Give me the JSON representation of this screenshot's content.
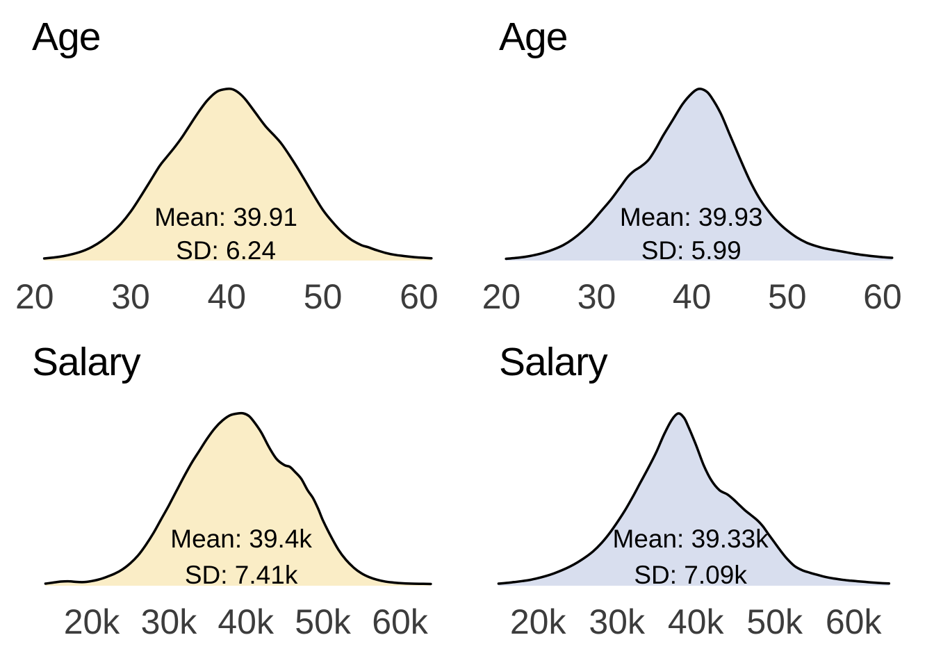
{
  "colors": {
    "background": "#FFFFFF",
    "series_a_fill": "#FAEDC6",
    "series_b_fill": "#D8DEEE",
    "curve_stroke": "#000000",
    "tick_text": "#3C3C3C",
    "title_text": "#000000"
  },
  "chart_data": [
    {
      "type": "area",
      "variant": "kde-density",
      "position": "top-left",
      "title": "Age",
      "fill_color": "#FAEDC6",
      "line_color": "#000000",
      "annotations": {
        "mean": "Mean: 39.91",
        "sd": "SD: 6.24"
      },
      "mean_value": 39.91,
      "sd_value": 6.24,
      "x_domain": [
        16.4,
        65.0
      ],
      "ylim": [
        0,
        1
      ],
      "grid": false,
      "legend": false,
      "x_ticks": {
        "values": [
          20,
          30,
          40,
          50,
          60
        ],
        "labels": [
          "20",
          "30",
          "40",
          "50",
          "60"
        ]
      },
      "curve": [
        [
          21,
          0.012
        ],
        [
          22,
          0.018
        ],
        [
          23,
          0.026
        ],
        [
          24,
          0.038
        ],
        [
          25,
          0.055
        ],
        [
          26,
          0.08
        ],
        [
          27,
          0.115
        ],
        [
          28,
          0.16
        ],
        [
          29,
          0.215
        ],
        [
          30,
          0.285
        ],
        [
          31,
          0.37
        ],
        [
          32,
          0.46
        ],
        [
          33,
          0.55
        ],
        [
          33.7,
          0.6
        ],
        [
          34.5,
          0.655
        ],
        [
          35.3,
          0.715
        ],
        [
          36,
          0.775
        ],
        [
          37,
          0.86
        ],
        [
          38,
          0.935
        ],
        [
          39,
          0.985
        ],
        [
          40,
          1.0
        ],
        [
          40.6,
          0.998
        ],
        [
          41.3,
          0.975
        ],
        [
          42,
          0.935
        ],
        [
          43,
          0.86
        ],
        [
          44,
          0.785
        ],
        [
          45,
          0.725
        ],
        [
          45.7,
          0.68
        ],
        [
          46.5,
          0.615
        ],
        [
          47.3,
          0.545
        ],
        [
          48,
          0.48
        ],
        [
          49,
          0.385
        ],
        [
          50,
          0.295
        ],
        [
          51,
          0.225
        ],
        [
          52,
          0.165
        ],
        [
          53,
          0.12
        ],
        [
          54,
          0.09
        ],
        [
          54.7,
          0.078
        ],
        [
          55.5,
          0.062
        ],
        [
          56.5,
          0.045
        ],
        [
          57.5,
          0.033
        ],
        [
          58.5,
          0.026
        ],
        [
          59.5,
          0.02
        ],
        [
          60.5,
          0.016
        ],
        [
          61.3,
          0.013
        ]
      ]
    },
    {
      "type": "area",
      "variant": "kde-density",
      "position": "top-right",
      "title": "Age",
      "fill_color": "#D8DEEE",
      "line_color": "#000000",
      "annotations": {
        "mean": "Mean: 39.93",
        "sd": "SD: 5.99"
      },
      "mean_value": 39.93,
      "sd_value": 5.99,
      "x_domain": [
        16.4,
        65.4
      ],
      "ylim": [
        0,
        1
      ],
      "grid": false,
      "legend": false,
      "x_ticks": {
        "values": [
          20,
          30,
          40,
          50,
          60
        ],
        "labels": [
          "20",
          "30",
          "40",
          "50",
          "60"
        ]
      },
      "curve": [
        [
          20.5,
          0.01
        ],
        [
          21.5,
          0.015
        ],
        [
          22.5,
          0.022
        ],
        [
          23.5,
          0.032
        ],
        [
          24.5,
          0.046
        ],
        [
          25.5,
          0.065
        ],
        [
          26.5,
          0.09
        ],
        [
          27.5,
          0.125
        ],
        [
          28.5,
          0.17
        ],
        [
          29.5,
          0.225
        ],
        [
          30.5,
          0.29
        ],
        [
          31.5,
          0.355
        ],
        [
          32.5,
          0.43
        ],
        [
          33.3,
          0.49
        ],
        [
          34,
          0.525
        ],
        [
          34.7,
          0.55
        ],
        [
          35.5,
          0.59
        ],
        [
          36.3,
          0.66
        ],
        [
          37,
          0.73
        ],
        [
          38,
          0.82
        ],
        [
          39,
          0.91
        ],
        [
          40,
          0.975
        ],
        [
          40.7,
          1.0
        ],
        [
          41.4,
          0.99
        ],
        [
          42,
          0.955
        ],
        [
          43,
          0.86
        ],
        [
          44,
          0.73
        ],
        [
          45,
          0.6
        ],
        [
          46,
          0.475
        ],
        [
          47,
          0.37
        ],
        [
          48,
          0.29
        ],
        [
          49,
          0.225
        ],
        [
          50,
          0.175
        ],
        [
          51,
          0.135
        ],
        [
          52,
          0.105
        ],
        [
          53,
          0.085
        ],
        [
          54,
          0.07
        ],
        [
          55,
          0.06
        ],
        [
          56,
          0.05
        ],
        [
          57,
          0.04
        ],
        [
          58,
          0.032
        ],
        [
          59,
          0.025
        ],
        [
          60,
          0.02
        ],
        [
          61,
          0.016
        ]
      ]
    },
    {
      "type": "area",
      "variant": "kde-density",
      "position": "bottom-left",
      "title": "Salary",
      "fill_color": "#FAEDC6",
      "line_color": "#000000",
      "annotations": {
        "mean": "Mean: 39.4k",
        "sd": "SD: 7.41k"
      },
      "mean_value": 39.4,
      "sd_value": 7.41,
      "x_domain": [
        8.1,
        68.7
      ],
      "ylim": [
        0,
        1
      ],
      "grid": false,
      "legend": false,
      "x_ticks": {
        "values": [
          20,
          30,
          40,
          50,
          60
        ],
        "labels": [
          "20k",
          "30k",
          "40k",
          "50k",
          "60k"
        ]
      },
      "curve": [
        [
          14,
          0.012
        ],
        [
          15,
          0.018
        ],
        [
          16,
          0.024
        ],
        [
          17,
          0.026
        ],
        [
          18,
          0.022
        ],
        [
          19,
          0.021
        ],
        [
          20,
          0.027
        ],
        [
          21,
          0.037
        ],
        [
          22,
          0.052
        ],
        [
          23,
          0.07
        ],
        [
          24,
          0.095
        ],
        [
          25,
          0.13
        ],
        [
          26,
          0.175
        ],
        [
          27,
          0.235
        ],
        [
          28,
          0.305
        ],
        [
          29,
          0.385
        ],
        [
          30,
          0.465
        ],
        [
          31,
          0.55
        ],
        [
          32,
          0.635
        ],
        [
          33,
          0.715
        ],
        [
          34,
          0.785
        ],
        [
          35,
          0.855
        ],
        [
          36,
          0.915
        ],
        [
          37,
          0.96
        ],
        [
          38,
          0.99
        ],
        [
          39,
          1.0
        ],
        [
          39.7,
          1.0
        ],
        [
          40.4,
          0.985
        ],
        [
          41,
          0.955
        ],
        [
          42,
          0.89
        ],
        [
          43,
          0.805
        ],
        [
          44,
          0.735
        ],
        [
          45,
          0.7
        ],
        [
          45.7,
          0.69
        ],
        [
          46.4,
          0.66
        ],
        [
          47.2,
          0.62
        ],
        [
          48,
          0.555
        ],
        [
          48.7,
          0.51
        ],
        [
          49.4,
          0.445
        ],
        [
          50,
          0.38
        ],
        [
          51,
          0.29
        ],
        [
          52,
          0.21
        ],
        [
          53,
          0.15
        ],
        [
          54,
          0.105
        ],
        [
          55,
          0.072
        ],
        [
          56,
          0.05
        ],
        [
          57,
          0.035
        ],
        [
          58,
          0.025
        ],
        [
          59,
          0.019
        ],
        [
          60,
          0.015
        ],
        [
          61.5,
          0.012
        ],
        [
          63,
          0.011
        ],
        [
          64,
          0.01
        ]
      ]
    },
    {
      "type": "area",
      "variant": "kde-density",
      "position": "bottom-right",
      "title": "Salary",
      "fill_color": "#D8DEEE",
      "line_color": "#000000",
      "annotations": {
        "mean": "Mean: 39.33k",
        "sd": "SD: 7.09k"
      },
      "mean_value": 39.33,
      "sd_value": 7.09,
      "x_domain": [
        11.0,
        70.2
      ],
      "ylim": [
        0,
        1
      ],
      "grid": false,
      "legend": false,
      "x_ticks": {
        "values": [
          20,
          30,
          40,
          50,
          60
        ],
        "labels": [
          "20k",
          "30k",
          "40k",
          "50k",
          "60k"
        ]
      },
      "curve": [
        [
          15,
          0.012
        ],
        [
          16,
          0.016
        ],
        [
          17,
          0.021
        ],
        [
          18,
          0.027
        ],
        [
          19,
          0.034
        ],
        [
          20,
          0.044
        ],
        [
          21,
          0.056
        ],
        [
          22,
          0.071
        ],
        [
          23,
          0.089
        ],
        [
          24,
          0.11
        ],
        [
          25,
          0.135
        ],
        [
          26,
          0.165
        ],
        [
          27,
          0.2
        ],
        [
          28,
          0.245
        ],
        [
          29,
          0.3
        ],
        [
          30,
          0.365
        ],
        [
          31,
          0.435
        ],
        [
          32,
          0.515
        ],
        [
          33,
          0.6
        ],
        [
          34,
          0.685
        ],
        [
          35,
          0.775
        ],
        [
          36,
          0.88
        ],
        [
          37,
          0.965
        ],
        [
          37.8,
          1.0
        ],
        [
          38.5,
          0.975
        ],
        [
          39,
          0.93
        ],
        [
          40,
          0.82
        ],
        [
          41,
          0.7
        ],
        [
          42,
          0.61
        ],
        [
          43,
          0.555
        ],
        [
          44,
          0.53
        ],
        [
          44.8,
          0.5
        ],
        [
          45.6,
          0.465
        ],
        [
          46.3,
          0.435
        ],
        [
          47,
          0.41
        ],
        [
          47.8,
          0.38
        ],
        [
          48.5,
          0.345
        ],
        [
          49.2,
          0.3
        ],
        [
          50,
          0.25
        ],
        [
          50.8,
          0.2
        ],
        [
          51.6,
          0.155
        ],
        [
          52.5,
          0.115
        ],
        [
          53.5,
          0.09
        ],
        [
          54.5,
          0.075
        ],
        [
          55.5,
          0.062
        ],
        [
          56.5,
          0.05
        ],
        [
          57.5,
          0.042
        ],
        [
          58.5,
          0.035
        ],
        [
          59.5,
          0.03
        ],
        [
          60.5,
          0.026
        ],
        [
          61.5,
          0.022
        ],
        [
          62.5,
          0.018
        ],
        [
          63.5,
          0.015
        ],
        [
          64.5,
          0.013
        ]
      ]
    }
  ]
}
